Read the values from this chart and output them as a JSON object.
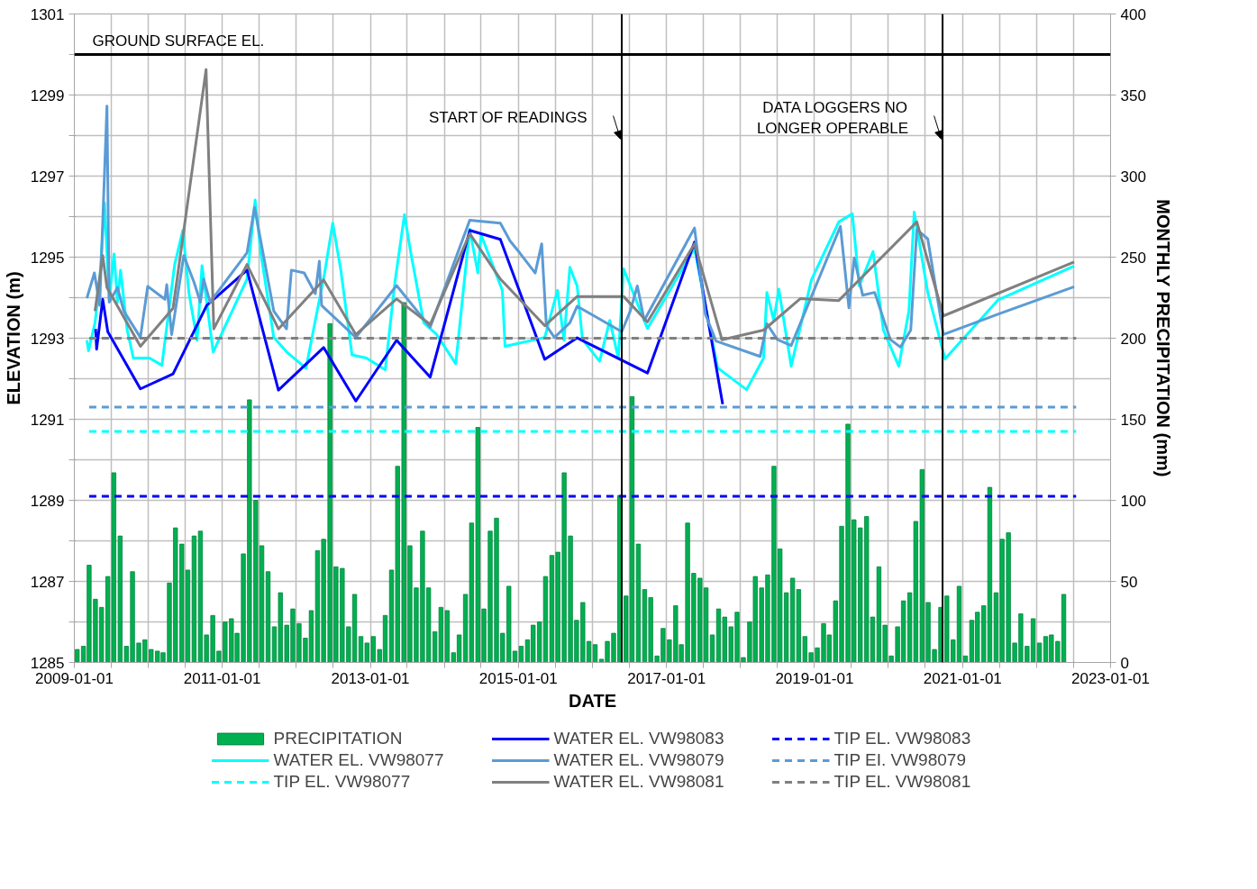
{
  "chart_data": {
    "type": "line",
    "xlabel": "DATE",
    "ylabel": "ELEVATION (m)",
    "y2label": "MONTHLY PRECIPITATION (mm)",
    "xlim": [
      "2009-01-01",
      "2023-01-01"
    ],
    "xticks": [
      "2009-01-01",
      {
        "value": "2009-07-01",
        "label": null
      },
      {
        "value": "2010-01-01",
        "label": null
      },
      {
        "value": "2010-07-01",
        "label": null
      },
      "2011-01-01",
      {
        "value": "2011-07-01",
        "label": null
      },
      {
        "value": "2012-01-01",
        "label": null
      },
      {
        "value": "2012-07-01",
        "label": null
      },
      "2013-01-01",
      {
        "value": "2013-07-01",
        "label": null
      },
      {
        "value": "2014-01-01",
        "label": null
      },
      {
        "value": "2014-07-01",
        "label": null
      },
      "2015-01-01",
      {
        "value": "2015-07-01",
        "label": null
      },
      {
        "value": "2016-01-01",
        "label": null
      },
      {
        "value": "2016-07-01",
        "label": null
      },
      "2017-01-01",
      {
        "value": "2017-07-01",
        "label": null
      },
      {
        "value": "2018-01-01",
        "label": null
      },
      {
        "value": "2018-07-01",
        "label": null
      },
      "2019-01-01",
      {
        "value": "2019-07-01",
        "label": null
      },
      {
        "value": "2020-01-01",
        "label": null
      },
      {
        "value": "2020-07-01",
        "label": null
      },
      "2021-01-01",
      {
        "value": "2021-07-01",
        "label": null
      },
      {
        "value": "2022-01-01",
        "label": null
      },
      {
        "value": "2022-07-01",
        "label": null
      },
      "2023-01-01"
    ],
    "ylim": [
      1285,
      1301
    ],
    "yticks": [
      1285,
      {
        "value": 1286,
        "label": null
      },
      1287,
      {
        "value": 1288,
        "label": null
      },
      1289,
      {
        "value": 1290,
        "label": null
      },
      1291,
      {
        "value": 1292,
        "label": null
      },
      1293,
      {
        "value": 1294,
        "label": null
      },
      1295,
      {
        "value": 1296,
        "label": null
      },
      1297,
      {
        "value": 1298,
        "label": null
      },
      1299,
      {
        "value": 1300,
        "label": null
      },
      1301
    ],
    "y2lim": [
      0,
      400
    ],
    "y2ticks": [
      0,
      50,
      100,
      150,
      200,
      250,
      300,
      350,
      400
    ],
    "grid": true,
    "legend": "bottom",
    "ref_lines": [
      {
        "axis": "y",
        "value": 1300,
        "label": "GROUND SURFACE EL.",
        "color": "#000000"
      },
      {
        "axis": "x",
        "value": "2016-05-25",
        "label": "START OF READINGS",
        "color": "#000000"
      },
      {
        "axis": "x",
        "value": "2020-09-24",
        "label": "DATA LOGGERS NO\nLONGER OPERABLE",
        "color": "#000000"
      }
    ],
    "series": [
      {
        "name": "PRECIPITATION",
        "type": "bar",
        "axis": "y2",
        "color": "#00b050",
        "x": [
          "2009-01-15",
          "2009-02-15",
          "2009-03-15",
          "2009-04-15",
          "2009-05-15",
          "2009-06-15",
          "2009-07-15",
          "2009-08-15",
          "2009-09-15",
          "2009-10-15",
          "2009-11-15",
          "2009-12-15",
          "2010-01-15",
          "2010-02-15",
          "2010-03-15",
          "2010-04-15",
          "2010-05-15",
          "2010-06-15",
          "2010-07-15",
          "2010-08-15",
          "2010-09-15",
          "2010-10-15",
          "2010-11-15",
          "2010-12-15",
          "2011-01-15",
          "2011-02-15",
          "2011-03-15",
          "2011-04-15",
          "2011-05-15",
          "2011-06-15",
          "2011-07-15",
          "2011-08-15",
          "2011-09-15",
          "2011-10-15",
          "2011-11-15",
          "2011-12-15",
          "2012-01-15",
          "2012-02-15",
          "2012-03-15",
          "2012-04-15",
          "2012-05-15",
          "2012-06-15",
          "2012-07-15",
          "2012-08-15",
          "2012-09-15",
          "2012-10-15",
          "2012-11-15",
          "2012-12-15",
          "2013-01-15",
          "2013-02-15",
          "2013-03-15",
          "2013-04-15",
          "2013-05-15",
          "2013-06-15",
          "2013-07-15",
          "2013-08-15",
          "2013-09-15",
          "2013-10-15",
          "2013-11-15",
          "2013-12-15",
          "2014-01-15",
          "2014-02-15",
          "2014-03-15",
          "2014-04-15",
          "2014-05-15",
          "2014-06-15",
          "2014-07-15",
          "2014-08-15",
          "2014-09-15",
          "2014-10-15",
          "2014-11-15",
          "2014-12-15",
          "2015-01-15",
          "2015-02-15",
          "2015-03-15",
          "2015-04-15",
          "2015-05-15",
          "2015-06-15",
          "2015-07-15",
          "2015-08-15",
          "2015-09-15",
          "2015-10-15",
          "2015-11-15",
          "2015-12-15",
          "2016-01-15",
          "2016-02-15",
          "2016-03-15",
          "2016-04-15",
          "2016-05-15",
          "2016-06-15",
          "2016-07-15",
          "2016-08-15",
          "2016-09-15",
          "2016-10-15",
          "2016-11-15",
          "2016-12-15",
          "2017-01-15",
          "2017-02-15",
          "2017-03-15",
          "2017-04-15",
          "2017-05-15",
          "2017-06-15",
          "2017-07-15",
          "2017-08-15",
          "2017-09-15",
          "2017-10-15",
          "2017-11-15",
          "2017-12-15",
          "2018-01-15",
          "2018-02-15",
          "2018-03-15",
          "2018-04-15",
          "2018-05-15",
          "2018-06-15",
          "2018-07-15",
          "2018-08-15",
          "2018-09-15",
          "2018-10-15",
          "2018-11-15",
          "2018-12-15",
          "2019-01-15",
          "2019-02-15",
          "2019-03-15",
          "2019-04-15",
          "2019-05-15",
          "2019-06-15",
          "2019-07-15",
          "2019-08-15",
          "2019-09-15",
          "2019-10-15",
          "2019-11-15",
          "2019-12-15",
          "2020-01-15",
          "2020-02-15",
          "2020-03-15",
          "2020-04-15",
          "2020-05-15",
          "2020-06-15",
          "2020-07-15",
          "2020-08-15",
          "2020-09-15",
          "2020-10-15",
          "2020-11-15",
          "2020-12-15",
          "2021-01-15",
          "2021-02-15",
          "2021-03-15",
          "2021-04-15",
          "2021-05-15",
          "2021-06-15",
          "2021-07-15",
          "2021-08-15",
          "2021-09-15",
          "2021-10-15",
          "2021-11-15",
          "2021-12-15",
          "2022-01-15",
          "2022-02-15",
          "2022-03-15",
          "2022-04-15",
          "2022-05-15"
        ],
        "values": [
          8,
          10,
          60,
          39,
          34,
          53,
          117,
          78,
          10,
          56,
          12,
          14,
          8,
          7,
          6,
          49,
          83,
          73,
          57,
          78,
          81,
          17,
          29,
          7,
          25,
          27,
          18,
          67,
          162,
          100,
          72,
          56,
          22,
          43,
          23,
          33,
          24,
          15,
          32,
          69,
          76,
          209,
          59,
          58,
          22,
          42,
          16,
          12,
          16,
          8,
          29,
          57,
          121,
          222,
          72,
          46,
          81,
          46,
          19,
          34,
          32,
          6,
          17,
          42,
          86,
          145,
          33,
          81,
          89,
          18,
          47,
          7,
          10,
          14,
          23,
          25,
          53,
          66,
          68,
          117,
          78,
          26,
          37,
          13,
          11,
          2,
          13,
          18,
          103,
          41,
          164,
          73,
          45,
          40,
          4,
          21,
          14,
          35,
          11,
          86,
          55,
          52,
          46,
          17,
          33,
          28,
          22,
          31,
          3,
          25,
          53,
          46,
          54,
          121,
          70,
          43,
          52,
          45,
          16,
          6,
          9,
          24,
          17,
          38,
          84,
          147,
          88,
          83,
          90,
          28,
          59,
          23,
          4,
          22,
          38,
          43,
          87,
          119,
          37,
          8,
          34,
          41,
          14,
          47,
          4,
          26,
          31,
          35,
          108,
          43,
          76,
          80,
          12,
          30,
          10,
          27,
          12,
          16,
          17,
          13,
          42
        ]
      },
      {
        "name": "WATER EL. VW98077",
        "color": "#00ffff",
        "x": [
          "2009-03-04",
          "2009-03-12",
          "2009-04-13",
          "2009-05-06",
          "2009-05-30",
          "2009-06-22",
          "2009-07-16",
          "2009-08-02",
          "2009-08-17",
          "2009-09-18",
          "2009-10-19",
          "2010-01-07",
          "2010-03-09",
          "2010-05-11",
          "2010-06-20",
          "2010-07-21",
          "2010-08-30",
          "2010-09-23",
          "2010-11-17",
          "2011-05-03",
          "2011-06-12",
          "2011-07-10",
          "2011-09-12",
          "2011-11-15",
          "2012-02-18",
          "2012-05-20",
          "2012-06-29",
          "2012-08-08",
          "2012-10-02",
          "2012-12-12",
          "2013-03-15",
          "2013-05-02",
          "2013-06-18",
          "2013-07-19",
          "2013-09-21",
          "2013-11-24",
          "2014-02-26",
          "2014-05-06",
          "2014-06-15",
          "2014-07-01",
          "2014-10-14",
          "2014-10-27",
          "2015-05-11",
          "2015-07-13",
          "2015-08-14",
          "2015-09-12",
          "2015-10-18",
          "2015-11-13",
          "2016-02-06",
          "2016-03-27",
          "2016-05-08",
          "2016-06-03",
          "2016-09-29",
          "2017-05-19",
          "2017-07-29",
          "2017-09-10",
          "2018-01-31",
          "2018-04-25",
          "2018-05-11",
          "2018-06-14",
          "2018-07-09",
          "2018-09-08",
          "2018-12-17",
          "2019-05-01",
          "2019-07-07",
          "2019-08-10",
          "2019-10-17",
          "2019-12-07",
          "2020-02-21",
          "2020-04-11",
          "2020-05-07",
          "2020-07-13",
          "2020-10-06",
          "2021-06-24",
          "2022-07-05"
        ],
        "values": [
          1292.95,
          1292.69,
          1293.38,
          1294.39,
          1296.34,
          1293.96,
          1295.08,
          1293.89,
          1294.68,
          1293.23,
          1292.51,
          1292.51,
          1292.33,
          1294.82,
          1295.66,
          1294.1,
          1292.95,
          1294.79,
          1292.66,
          1294.46,
          1296.41,
          1295.11,
          1293.02,
          1292.66,
          1292.26,
          1294.61,
          1295.84,
          1294.68,
          1292.59,
          1292.51,
          1292.22,
          1294.39,
          1296.05,
          1295.11,
          1293.38,
          1293.09,
          1292.37,
          1295.69,
          1294.61,
          1295.55,
          1294.18,
          1292.8,
          1293.02,
          1294.18,
          1292.95,
          1294.75,
          1294.29,
          1292.97,
          1292.43,
          1293.44,
          1292.51,
          1294.71,
          1293.24,
          1295.22,
          1293.36,
          1292.27,
          1291.73,
          1292.51,
          1294.13,
          1293.44,
          1294.21,
          1292.31,
          1294.44,
          1295.87,
          1296.07,
          1294.29,
          1295.14,
          1293.2,
          1292.31,
          1293.67,
          1296.11,
          1294.13,
          1292.49,
          1293.94,
          1294.78
        ]
      },
      {
        "name": "TIP EL. VW98077",
        "line_style": "dashed",
        "color": "#00ffff",
        "x": [
          "2009-03-15",
          "2022-07-15"
        ],
        "values": [
          1290.7,
          1290.7
        ]
      },
      {
        "name": "WATER EL. VW98083",
        "color": "#0000ff",
        "x": [
          "2009-04-16",
          "2009-04-21",
          "2009-05-21",
          "2009-06-15",
          "2009-11-23",
          "2010-05-03",
          "2010-10-16",
          "2011-05-03",
          "2011-10-05",
          "2012-05-15",
          "2012-10-21",
          "2013-05-10",
          "2013-10-23",
          "2014-05-06",
          "2014-10-04",
          "2015-05-11",
          "2015-10-18",
          "2016-09-29",
          "2017-05-19",
          "2017-10-05"
        ],
        "values": [
          1293.23,
          1292.73,
          1293.96,
          1293.16,
          1291.75,
          1292.12,
          1293.81,
          1294.68,
          1291.72,
          1292.77,
          1291.45,
          1292.95,
          1292.04,
          1295.66,
          1295.44,
          1292.48,
          1293.01,
          1292.14,
          1295.37,
          1291.37
        ]
      },
      {
        "name": "WATER EL. VW98079",
        "color": "#5b9bd5",
        "x": [
          "2009-03-04",
          "2009-04-10",
          "2009-05-06",
          "2009-06-11",
          "2009-06-22",
          "2009-08-02",
          "2009-09-02",
          "2009-11-23",
          "2009-12-29",
          "2010-03-24",
          "2010-04-02",
          "2010-04-26",
          "2010-06-25",
          "2010-08-14",
          "2010-09-15",
          "2010-10-01",
          "2010-11-02",
          "2011-05-03",
          "2011-06-09",
          "2011-07-10",
          "2011-09-12",
          "2011-11-14",
          "2011-12-08",
          "2012-02-09",
          "2012-04-04",
          "2012-04-24",
          "2012-05-05",
          "2012-10-21",
          "2013-05-10",
          "2013-10-23",
          "2014-05-06",
          "2014-10-04",
          "2014-11-21",
          "2015-01-07",
          "2015-03-25",
          "2015-04-26",
          "2015-05-19",
          "2015-06-28",
          "2015-09-12",
          "2015-10-18",
          "2016-05-25",
          "2016-07-06",
          "2016-08-10",
          "2016-09-13",
          "2017-05-19",
          "2017-07-12",
          "2017-09-02",
          "2018-04-08",
          "2018-05-11",
          "2018-07-01",
          "2018-09-08",
          "2019-05-09",
          "2019-06-20",
          "2019-07-16",
          "2019-08-27",
          "2019-10-25",
          "2020-01-10",
          "2020-02-29",
          "2020-04-20",
          "2020-05-20",
          "2020-07-13",
          "2020-09-28",
          "2021-06-24",
          "2022-07-05"
        ],
        "values": [
          1293.99,
          1294.61,
          1293.81,
          1298.73,
          1293.89,
          1294.25,
          1293.67,
          1293.02,
          1294.28,
          1293.96,
          1294.32,
          1293.09,
          1295.04,
          1294.39,
          1293.89,
          1294.46,
          1293.89,
          1295.11,
          1296.23,
          1295.4,
          1293.67,
          1293.23,
          1294.68,
          1294.61,
          1294.1,
          1294.9,
          1293.81,
          1293.02,
          1294.3,
          1293.27,
          1295.91,
          1295.84,
          1295.4,
          1295.11,
          1294.61,
          1295.33,
          1293.31,
          1293.02,
          1293.38,
          1293.79,
          1293.16,
          1293.67,
          1294.29,
          1293.44,
          1295.72,
          1293.59,
          1292.93,
          1292.55,
          1293.36,
          1292.97,
          1292.82,
          1295.76,
          1293.75,
          1294.98,
          1294.06,
          1294.13,
          1292.97,
          1292.78,
          1293.2,
          1295.68,
          1295.45,
          1293.09,
          1293.59,
          1294.27
        ]
      },
      {
        "name": "WATER EL. VW98081",
        "color": "#808080",
        "x": [
          "2009-04-13",
          "2009-05-21",
          "2009-06-11",
          "2009-11-23",
          "2010-05-03",
          "2010-10-13",
          "2010-11-20",
          "2011-05-03",
          "2011-10-05",
          "2012-05-15",
          "2012-10-21",
          "2013-05-10",
          "2013-10-23",
          "2014-05-06",
          "2014-10-04",
          "2015-05-11",
          "2015-10-18",
          "2016-06-03",
          "2016-09-29",
          "2017-05-19",
          "2017-10-02",
          "2018-04-25",
          "2018-10-24",
          "2019-05-01",
          "2020-05-20",
          "2020-09-28",
          "2022-07-05"
        ],
        "values": [
          1293.67,
          1295.04,
          1294.25,
          1292.8,
          1293.74,
          1299.63,
          1293.23,
          1294.82,
          1293.23,
          1294.44,
          1293.09,
          1293.97,
          1293.34,
          1295.58,
          1294.46,
          1293.31,
          1294.03,
          1294.03,
          1293.4,
          1295.33,
          1292.96,
          1293.2,
          1293.98,
          1293.93,
          1295.87,
          1293.55,
          1294.88
        ]
      },
      {
        "name": "TIP EL. VW98083",
        "line_style": "dashed",
        "color": "#0000ff",
        "x": [
          "2009-03-15",
          "2022-07-15"
        ],
        "values": [
          1289.1,
          1289.1
        ]
      },
      {
        "name": "TIP EI. VW98079",
        "line_style": "dashed",
        "color": "#5b9bd5",
        "x": [
          "2009-03-15",
          "2022-07-15"
        ],
        "values": [
          1291.3,
          1291.3
        ]
      },
      {
        "name": "TIP EL. VW98081",
        "line_style": "dashed",
        "color": "#808080",
        "x": [
          "2009-03-15",
          "2022-07-15"
        ],
        "values": [
          1293.0,
          1293.0
        ]
      }
    ]
  }
}
